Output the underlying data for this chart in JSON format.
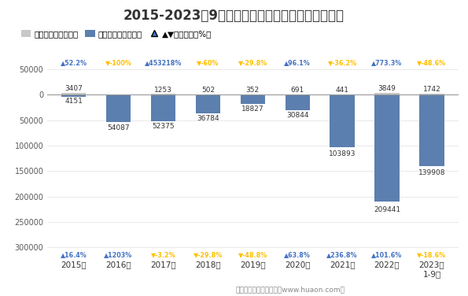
{
  "title": "2015-2023年9月北京亦庄保税物流中心进、出口额",
  "years": [
    "2015年",
    "2016年",
    "2017年",
    "2018年",
    "2019年",
    "2020年",
    "2021年",
    "2022年",
    "2023年\n1-9月"
  ],
  "export_values": [
    3407,
    0,
    1253,
    502,
    352,
    691,
    441,
    3849,
    1742
  ],
  "import_values": [
    4151,
    54087,
    52375,
    36784,
    18827,
    30844,
    103893,
    209441,
    139908
  ],
  "export_yoy": [
    "▲52.2%",
    "▼-100%",
    "▲453218%",
    "▼-60%",
    "▼-29.8%",
    "▲96.1%",
    "▼-36.2%",
    "▲773.3%",
    "▼-48.6%"
  ],
  "import_yoy": [
    "▲16.4%",
    "▲1203%",
    "▼-3.2%",
    "▼-29.8%",
    "▼-48.8%",
    "▲63.8%",
    "▲236.8%",
    "▲101.6%",
    "▼-18.6%"
  ],
  "export_yoy_up": [
    true,
    false,
    true,
    false,
    false,
    true,
    false,
    true,
    false
  ],
  "import_yoy_up": [
    true,
    true,
    false,
    false,
    false,
    true,
    true,
    true,
    false
  ],
  "export_color": "#c8c8c8",
  "import_color": "#5b7fae",
  "yoy_up_color": "#4472c4",
  "yoy_down_color": "#ffc000",
  "background_color": "#ffffff",
  "ylabel_color": "#595959",
  "footer": "制图：华经产业研究院（www.huaon.com）"
}
